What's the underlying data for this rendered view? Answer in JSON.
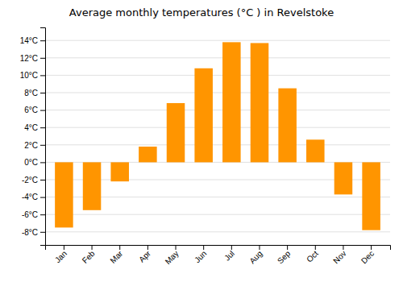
{
  "chart_data": {
    "type": "bar",
    "title": "Average monthly temperatures (°C ) in Revelstoke",
    "categories": [
      "Jan",
      "Feb",
      "Mar",
      "Apr",
      "May",
      "Jun",
      "Jul",
      "Aug",
      "Sep",
      "Oct",
      "Nov",
      "Dec"
    ],
    "values": [
      -7.5,
      -5.5,
      -2.2,
      1.8,
      6.8,
      10.8,
      13.8,
      13.7,
      8.5,
      2.6,
      -3.7,
      -7.8
    ],
    "color": "#FF9500",
    "ylim": [
      -9.5,
      15.5
    ],
    "yticks": [
      {
        "value": -8,
        "label": "-8°C"
      },
      {
        "value": -6,
        "label": "-6°C"
      },
      {
        "value": -4,
        "label": "-4°C"
      },
      {
        "value": -2,
        "label": "-2°C"
      },
      {
        "value": 0,
        "label": "0°C"
      },
      {
        "value": 2,
        "label": "2°C"
      },
      {
        "value": 4,
        "label": "4°C"
      },
      {
        "value": 6,
        "label": "6°C"
      },
      {
        "value": 8,
        "label": "8°C"
      },
      {
        "value": 10,
        "label": "10°C"
      },
      {
        "value": 12,
        "label": "12°C"
      },
      {
        "value": 14,
        "label": "14°C"
      }
    ],
    "grid": true
  }
}
